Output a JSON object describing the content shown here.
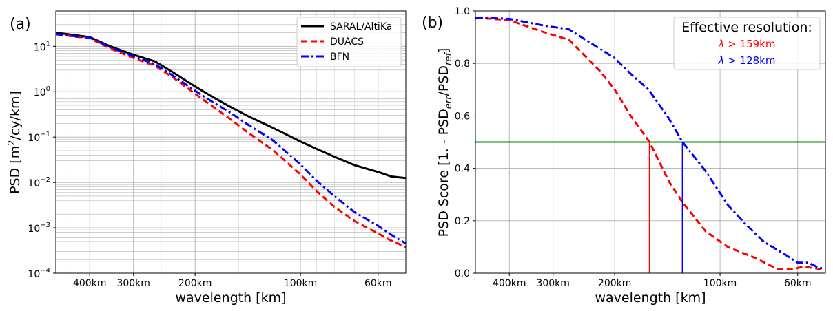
{
  "chart_data": [
    {
      "type": "line",
      "panel_label": "(a)",
      "xlabel": "wavelength [km]",
      "ylabel_main": "PSD [m",
      "ylabel_sup": "2",
      "ylabel_end": "/cy/km]",
      "y_scale": "log",
      "x_scale": "log-wavenumber",
      "xlim_km": [
        500,
        50
      ],
      "ylim": [
        0.0001,
        60
      ],
      "x_ticks": [
        {
          "km": 400,
          "label": "400km"
        },
        {
          "km": 300,
          "label": "300km"
        },
        {
          "km": 200,
          "label": "200km"
        },
        {
          "km": 100,
          "label": "100km"
        },
        {
          "km": 60,
          "label": "60km"
        }
      ],
      "y_ticks": [
        {
          "value": 10,
          "base": "10",
          "exp": "1"
        },
        {
          "value": 1,
          "base": "10",
          "exp": "0"
        },
        {
          "value": 0.1,
          "base": "10",
          "exp": "−1"
        },
        {
          "value": 0.01,
          "base": "10",
          "exp": "−2"
        },
        {
          "value": 0.001,
          "base": "10",
          "exp": "−3"
        },
        {
          "value": 0.0001,
          "base": "10",
          "exp": "−4"
        }
      ],
      "legend_position": "top-right",
      "grid": true,
      "series": [
        {
          "name": "SARAL/AltiKa",
          "color": "#000000",
          "dash": "solid",
          "points": [
            [
              500,
              20
            ],
            [
              400,
              16
            ],
            [
              350,
              10
            ],
            [
              300,
              6.5
            ],
            [
              260,
              4.6
            ],
            [
              230,
              2.6
            ],
            [
              200,
              1.3
            ],
            [
              180,
              0.8
            ],
            [
              160,
              0.48
            ],
            [
              140,
              0.28
            ],
            [
              120,
              0.16
            ],
            [
              100,
              0.08
            ],
            [
              90,
              0.055
            ],
            [
              80,
              0.037
            ],
            [
              70,
              0.024
            ],
            [
              60,
              0.017
            ],
            [
              55,
              0.0135
            ],
            [
              50,
              0.0125
            ]
          ]
        },
        {
          "name": "DUACS",
          "color": "#ff0000",
          "dash": "dashed",
          "points": [
            [
              500,
              18.5
            ],
            [
              400,
              15
            ],
            [
              350,
              9
            ],
            [
              300,
              5.5
            ],
            [
              260,
              3.7
            ],
            [
              230,
              2
            ],
            [
              200,
              0.9
            ],
            [
              180,
              0.5
            ],
            [
              160,
              0.26
            ],
            [
              140,
              0.12
            ],
            [
              120,
              0.052
            ],
            [
              100,
              0.015
            ],
            [
              90,
              0.0065
            ],
            [
              80,
              0.0029
            ],
            [
              70,
              0.0014
            ],
            [
              60,
              0.00075
            ],
            [
              55,
              0.00052
            ],
            [
              50,
              0.00038
            ]
          ]
        },
        {
          "name": "BFN",
          "color": "#0000ff",
          "dash": "dashdot",
          "points": [
            [
              500,
              18.5
            ],
            [
              400,
              15.5
            ],
            [
              350,
              9.5
            ],
            [
              300,
              6
            ],
            [
              260,
              4
            ],
            [
              230,
              2.2
            ],
            [
              200,
              1.05
            ],
            [
              180,
              0.62
            ],
            [
              160,
              0.36
            ],
            [
              140,
              0.18
            ],
            [
              120,
              0.085
            ],
            [
              100,
              0.025
            ],
            [
              90,
              0.011
            ],
            [
              80,
              0.005
            ],
            [
              70,
              0.0022
            ],
            [
              60,
              0.0011
            ],
            [
              55,
              0.0007
            ],
            [
              50,
              0.00045
            ]
          ]
        }
      ]
    },
    {
      "type": "line",
      "panel_label": "(b)",
      "xlabel": "wavelength [km]",
      "ylabel_pre": "PSD Score [1. - PSD",
      "ylabel_sub1": "err",
      "ylabel_mid": "/PSD",
      "ylabel_sub2": "ref",
      "ylabel_end": "]",
      "x_scale": "log-wavenumber",
      "xlim_km": [
        500,
        50
      ],
      "ylim": [
        0,
        1
      ],
      "x_ticks": [
        {
          "km": 400,
          "label": "400km"
        },
        {
          "km": 300,
          "label": "300km"
        },
        {
          "km": 200,
          "label": "200km"
        },
        {
          "km": 100,
          "label": "100km"
        },
        {
          "km": 60,
          "label": "60km"
        }
      ],
      "y_ticks": [
        {
          "value": 0.0,
          "label": "0.0"
        },
        {
          "value": 0.2,
          "label": "0.2"
        },
        {
          "value": 0.4,
          "label": "0.4"
        },
        {
          "value": 0.6,
          "label": "0.6"
        },
        {
          "value": 0.8,
          "label": "0.8"
        },
        {
          "value": 1.0,
          "label": "1.0"
        }
      ],
      "grid": true,
      "threshold": {
        "value": 0.5,
        "color": "#008000"
      },
      "annotation": {
        "title": "Effective resolution:",
        "lines": [
          {
            "lambda_prefix": "λ",
            "text": " > 159km",
            "color": "#ff0000"
          },
          {
            "lambda_prefix": "λ",
            "text": " > 128km",
            "color": "#0000ff"
          }
        ],
        "position": "top-right"
      },
      "series": [
        {
          "name": "DUACS",
          "color": "#ff0000",
          "dash": "dashed",
          "effective_resolution_km": 159,
          "points": [
            [
              500,
              0.975
            ],
            [
              400,
              0.965
            ],
            [
              320,
              0.92
            ],
            [
              270,
              0.89
            ],
            [
              220,
              0.77
            ],
            [
              200,
              0.7
            ],
            [
              180,
              0.6
            ],
            [
              159,
              0.5
            ],
            [
              140,
              0.35
            ],
            [
              128,
              0.27
            ],
            [
              110,
              0.16
            ],
            [
              95,
              0.1
            ],
            [
              80,
              0.06
            ],
            [
              72,
              0.03
            ],
            [
              68,
              0.015
            ],
            [
              62,
              0.015
            ],
            [
              58,
              0.025
            ],
            [
              54,
              0.02
            ],
            [
              50,
              0.012
            ]
          ]
        },
        {
          "name": "BFN",
          "color": "#0000ff",
          "dash": "dashdot",
          "effective_resolution_km": 128,
          "points": [
            [
              500,
              0.975
            ],
            [
              400,
              0.97
            ],
            [
              320,
              0.945
            ],
            [
              270,
              0.93
            ],
            [
              220,
              0.855
            ],
            [
              200,
              0.82
            ],
            [
              180,
              0.76
            ],
            [
              160,
              0.7
            ],
            [
              140,
              0.59
            ],
            [
              128,
              0.5
            ],
            [
              110,
              0.39
            ],
            [
              95,
              0.26
            ],
            [
              85,
              0.19
            ],
            [
              75,
              0.12
            ],
            [
              65,
              0.07
            ],
            [
              60,
              0.04
            ],
            [
              56,
              0.04
            ],
            [
              52,
              0.02
            ],
            [
              50,
              0.018
            ]
          ]
        }
      ]
    }
  ]
}
